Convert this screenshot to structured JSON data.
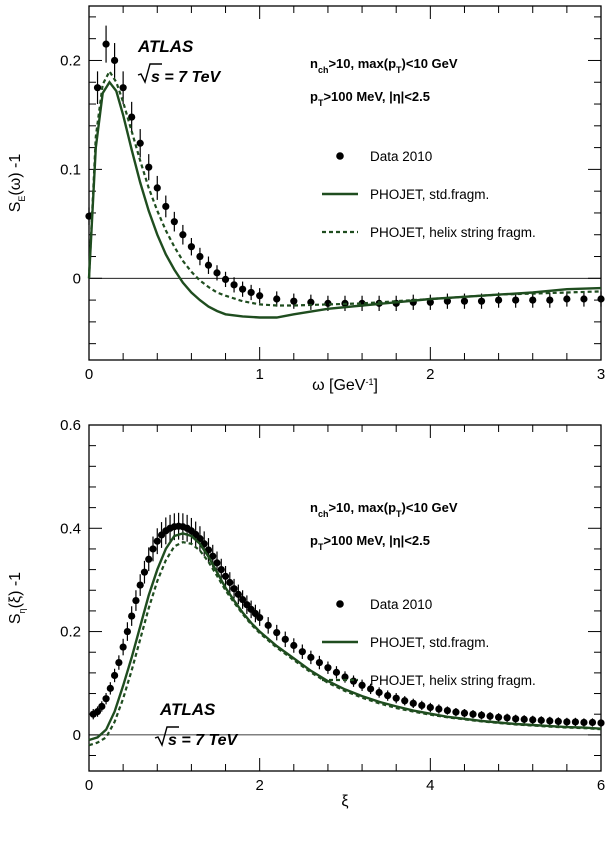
{
  "colors": {
    "data": "#000000",
    "model": "#1f4d1f"
  },
  "chart_data": [
    {
      "type": "line",
      "experiment": "ATLAS",
      "energy_label": "s = 7 TeV",
      "cuts": [
        "n",
        "ch",
        ">10, max(p",
        "T",
        ")<10 GeV",
        "p",
        "T",
        ">100 MeV, |η|<2.5"
      ],
      "xlabel": "ω [GeV",
      "xlabel_sup": "-1",
      "xlabel_end": "]",
      "ylabel": "S",
      "ylabel_sub": "E",
      "ylabel_end": "(ω) -1",
      "xlim": [
        0,
        3
      ],
      "ylim": [
        -0.075,
        0.25
      ],
      "xticks": [
        0,
        1,
        2,
        3
      ],
      "xtick_labels": [
        "0",
        "1",
        "2",
        "3"
      ],
      "yticks": [
        0,
        0.1,
        0.2
      ],
      "ytick_labels": [
        "0",
        "0.1",
        "0.2"
      ],
      "legend": [
        "Data 2010",
        "PHOJET, std.fragm.",
        "PHOJET, helix string fragm."
      ],
      "series": [
        {
          "name": "Data 2010",
          "style": "points",
          "x": [
            0,
            0.05,
            0.1,
            0.15,
            0.2,
            0.25,
            0.3,
            0.35,
            0.4,
            0.45,
            0.5,
            0.55,
            0.6,
            0.65,
            0.7,
            0.75,
            0.8,
            0.85,
            0.9,
            0.95,
            1.0,
            1.1,
            1.2,
            1.3,
            1.4,
            1.5,
            1.6,
            1.7,
            1.8,
            1.9,
            2.0,
            2.1,
            2.2,
            2.3,
            2.4,
            2.5,
            2.6,
            2.7,
            2.8,
            2.9,
            3.0
          ],
          "y": [
            0.057,
            0.175,
            0.215,
            0.2,
            0.175,
            0.148,
            0.124,
            0.102,
            0.083,
            0.066,
            0.052,
            0.04,
            0.029,
            0.02,
            0.012,
            0.005,
            -0.001,
            -0.006,
            -0.01,
            -0.013,
            -0.016,
            -0.019,
            -0.021,
            -0.022,
            -0.023,
            -0.023,
            -0.023,
            -0.023,
            -0.023,
            -0.022,
            -0.022,
            -0.021,
            -0.021,
            -0.021,
            -0.02,
            -0.02,
            -0.02,
            -0.02,
            -0.019,
            -0.019,
            -0.019
          ],
          "err": [
            0.008,
            0.015,
            0.017,
            0.016,
            0.015,
            0.014,
            0.013,
            0.012,
            0.011,
            0.01,
            0.009,
            0.009,
            0.008,
            0.008,
            0.008,
            0.007,
            0.007,
            0.007,
            0.007,
            0.007,
            0.007,
            0.007,
            0.007,
            0.007,
            0.007,
            0.007,
            0.007,
            0.007,
            0.007,
            0.007,
            0.007,
            0.007,
            0.007,
            0.007,
            0.007,
            0.007,
            0.007,
            0.007,
            0.007,
            0.007,
            0.007
          ]
        },
        {
          "name": "PHOJET, std.fragm.",
          "style": "solid",
          "x": [
            0,
            0.04,
            0.08,
            0.12,
            0.16,
            0.2,
            0.25,
            0.3,
            0.35,
            0.4,
            0.45,
            0.5,
            0.55,
            0.6,
            0.65,
            0.7,
            0.75,
            0.8,
            0.9,
            1.0,
            1.1,
            1.2,
            1.4,
            1.6,
            1.8,
            2.0,
            2.2,
            2.4,
            2.6,
            2.8,
            3.0
          ],
          "y": [
            0.0,
            0.12,
            0.17,
            0.18,
            0.172,
            0.15,
            0.118,
            0.088,
            0.062,
            0.04,
            0.022,
            0.008,
            -0.004,
            -0.013,
            -0.02,
            -0.026,
            -0.03,
            -0.033,
            -0.035,
            -0.036,
            -0.036,
            -0.033,
            -0.028,
            -0.025,
            -0.022,
            -0.019,
            -0.017,
            -0.015,
            -0.013,
            -0.01,
            -0.009
          ]
        },
        {
          "name": "PHOJET, helix string fragm.",
          "style": "dotted",
          "x": [
            0,
            0.04,
            0.08,
            0.12,
            0.16,
            0.2,
            0.25,
            0.3,
            0.35,
            0.4,
            0.45,
            0.5,
            0.55,
            0.6,
            0.65,
            0.7,
            0.75,
            0.8,
            0.9,
            1.0,
            1.1,
            1.2,
            1.4,
            1.6,
            1.8,
            2.0,
            2.2,
            2.4,
            2.6,
            2.8,
            3.0
          ],
          "y": [
            0.0,
            0.13,
            0.178,
            0.19,
            0.18,
            0.162,
            0.135,
            0.108,
            0.083,
            0.062,
            0.044,
            0.029,
            0.016,
            0.006,
            -0.002,
            -0.008,
            -0.013,
            -0.016,
            -0.021,
            -0.024,
            -0.025,
            -0.025,
            -0.024,
            -0.023,
            -0.021,
            -0.019,
            -0.017,
            -0.015,
            -0.014,
            -0.013,
            -0.012
          ]
        }
      ]
    },
    {
      "type": "line",
      "experiment": "ATLAS",
      "energy_label": "s = 7 TeV",
      "cuts": [
        "n",
        "ch",
        ">10, max(p",
        "T",
        ")<10 GeV",
        "p",
        "T",
        ">100 MeV, |η|<2.5"
      ],
      "xlabel": "ξ",
      "ylabel": "S",
      "ylabel_sub": "η",
      "ylabel_end": "(ξ) -1",
      "xlim": [
        0,
        6
      ],
      "ylim": [
        -0.07,
        0.6
      ],
      "xticks": [
        0,
        2,
        4,
        6
      ],
      "xtick_labels": [
        "0",
        "2",
        "4",
        "6"
      ],
      "yticks": [
        0,
        0.2,
        0.4,
        0.6
      ],
      "ytick_labels": [
        "0",
        "0.2",
        "0.4",
        "0.6"
      ],
      "legend": [
        "Data 2010",
        "PHOJET, std.fragm.",
        "PHOJET, helix string fragm."
      ],
      "series": [
        {
          "name": "Data 2010",
          "style": "points",
          "x": [
            0.05,
            0.1,
            0.15,
            0.2,
            0.25,
            0.3,
            0.35,
            0.4,
            0.45,
            0.5,
            0.55,
            0.6,
            0.65,
            0.7,
            0.75,
            0.8,
            0.85,
            0.9,
            0.95,
            1.0,
            1.05,
            1.1,
            1.15,
            1.2,
            1.25,
            1.3,
            1.35,
            1.4,
            1.45,
            1.5,
            1.55,
            1.6,
            1.65,
            1.7,
            1.75,
            1.8,
            1.85,
            1.9,
            1.95,
            2.0,
            2.1,
            2.2,
            2.3,
            2.4,
            2.5,
            2.6,
            2.7,
            2.8,
            2.9,
            3.0,
            3.1,
            3.2,
            3.3,
            3.4,
            3.5,
            3.6,
            3.7,
            3.8,
            3.9,
            4.0,
            4.1,
            4.2,
            4.3,
            4.4,
            4.5,
            4.6,
            4.7,
            4.8,
            4.9,
            5.0,
            5.1,
            5.2,
            5.3,
            5.4,
            5.5,
            5.6,
            5.7,
            5.8,
            5.9,
            6.0
          ],
          "y": [
            0.04,
            0.045,
            0.055,
            0.07,
            0.09,
            0.115,
            0.14,
            0.17,
            0.2,
            0.23,
            0.26,
            0.29,
            0.315,
            0.34,
            0.36,
            0.375,
            0.387,
            0.395,
            0.4,
            0.403,
            0.404,
            0.403,
            0.4,
            0.395,
            0.388,
            0.38,
            0.37,
            0.358,
            0.346,
            0.333,
            0.32,
            0.307,
            0.295,
            0.283,
            0.272,
            0.262,
            0.252,
            0.243,
            0.235,
            0.227,
            0.212,
            0.198,
            0.185,
            0.173,
            0.161,
            0.15,
            0.14,
            0.13,
            0.121,
            0.112,
            0.104,
            0.096,
            0.089,
            0.082,
            0.076,
            0.071,
            0.066,
            0.061,
            0.057,
            0.053,
            0.05,
            0.047,
            0.044,
            0.042,
            0.04,
            0.038,
            0.036,
            0.034,
            0.033,
            0.031,
            0.03,
            0.029,
            0.028,
            0.027,
            0.026,
            0.025,
            0.025,
            0.024,
            0.024,
            0.023
          ],
          "err": [
            0.01,
            0.01,
            0.01,
            0.011,
            0.012,
            0.013,
            0.014,
            0.016,
            0.018,
            0.019,
            0.02,
            0.021,
            0.022,
            0.023,
            0.024,
            0.025,
            0.025,
            0.026,
            0.026,
            0.026,
            0.026,
            0.026,
            0.026,
            0.025,
            0.025,
            0.024,
            0.024,
            0.023,
            0.022,
            0.022,
            0.021,
            0.02,
            0.02,
            0.019,
            0.019,
            0.018,
            0.018,
            0.017,
            0.017,
            0.016,
            0.016,
            0.015,
            0.015,
            0.014,
            0.014,
            0.013,
            0.013,
            0.012,
            0.012,
            0.011,
            0.011,
            0.011,
            0.01,
            0.01,
            0.01,
            0.01,
            0.009,
            0.009,
            0.009,
            0.009,
            0.009,
            0.008,
            0.008,
            0.008,
            0.008,
            0.008,
            0.008,
            0.008,
            0.008,
            0.008,
            0.008,
            0.008,
            0.008,
            0.008,
            0.008,
            0.008,
            0.008,
            0.008,
            0.008,
            0.008
          ]
        },
        {
          "name": "PHOJET, std.fragm.",
          "style": "solid",
          "x": [
            0,
            0.1,
            0.2,
            0.3,
            0.4,
            0.5,
            0.6,
            0.7,
            0.8,
            0.9,
            1.0,
            1.1,
            1.2,
            1.3,
            1.4,
            1.5,
            1.6,
            1.7,
            1.8,
            1.9,
            2.0,
            2.2,
            2.4,
            2.6,
            2.8,
            3.0,
            3.2,
            3.4,
            3.6,
            3.8,
            4.0,
            4.2,
            4.4,
            4.6,
            4.8,
            5.0,
            5.2,
            5.4,
            5.6,
            5.8,
            6.0
          ],
          "y": [
            -0.01,
            -0.005,
            0.01,
            0.045,
            0.095,
            0.15,
            0.21,
            0.27,
            0.32,
            0.36,
            0.385,
            0.39,
            0.385,
            0.37,
            0.345,
            0.315,
            0.285,
            0.26,
            0.237,
            0.217,
            0.2,
            0.172,
            0.148,
            0.124,
            0.104,
            0.088,
            0.075,
            0.064,
            0.055,
            0.047,
            0.041,
            0.035,
            0.031,
            0.027,
            0.024,
            0.021,
            0.019,
            0.017,
            0.015,
            0.014,
            0.012
          ]
        },
        {
          "name": "PHOJET, helix string fragm.",
          "style": "dotted",
          "x": [
            0,
            0.1,
            0.2,
            0.3,
            0.4,
            0.5,
            0.6,
            0.7,
            0.8,
            0.9,
            1.0,
            1.1,
            1.2,
            1.3,
            1.4,
            1.5,
            1.6,
            1.7,
            1.8,
            1.9,
            2.0,
            2.2,
            2.4,
            2.6,
            2.8,
            3.0,
            3.2,
            3.4,
            3.6,
            3.8,
            4.0,
            4.2,
            4.4,
            4.6,
            4.8,
            5.0,
            5.2,
            5.4,
            5.6,
            5.8,
            6.0
          ],
          "y": [
            -0.02,
            -0.015,
            -0.005,
            0.025,
            0.07,
            0.125,
            0.185,
            0.245,
            0.298,
            0.338,
            0.365,
            0.373,
            0.37,
            0.357,
            0.335,
            0.308,
            0.28,
            0.256,
            0.234,
            0.214,
            0.197,
            0.169,
            0.145,
            0.121,
            0.101,
            0.085,
            0.072,
            0.061,
            0.052,
            0.045,
            0.039,
            0.034,
            0.03,
            0.026,
            0.023,
            0.02,
            0.018,
            0.016,
            0.014,
            0.013,
            0.011
          ]
        }
      ]
    }
  ]
}
